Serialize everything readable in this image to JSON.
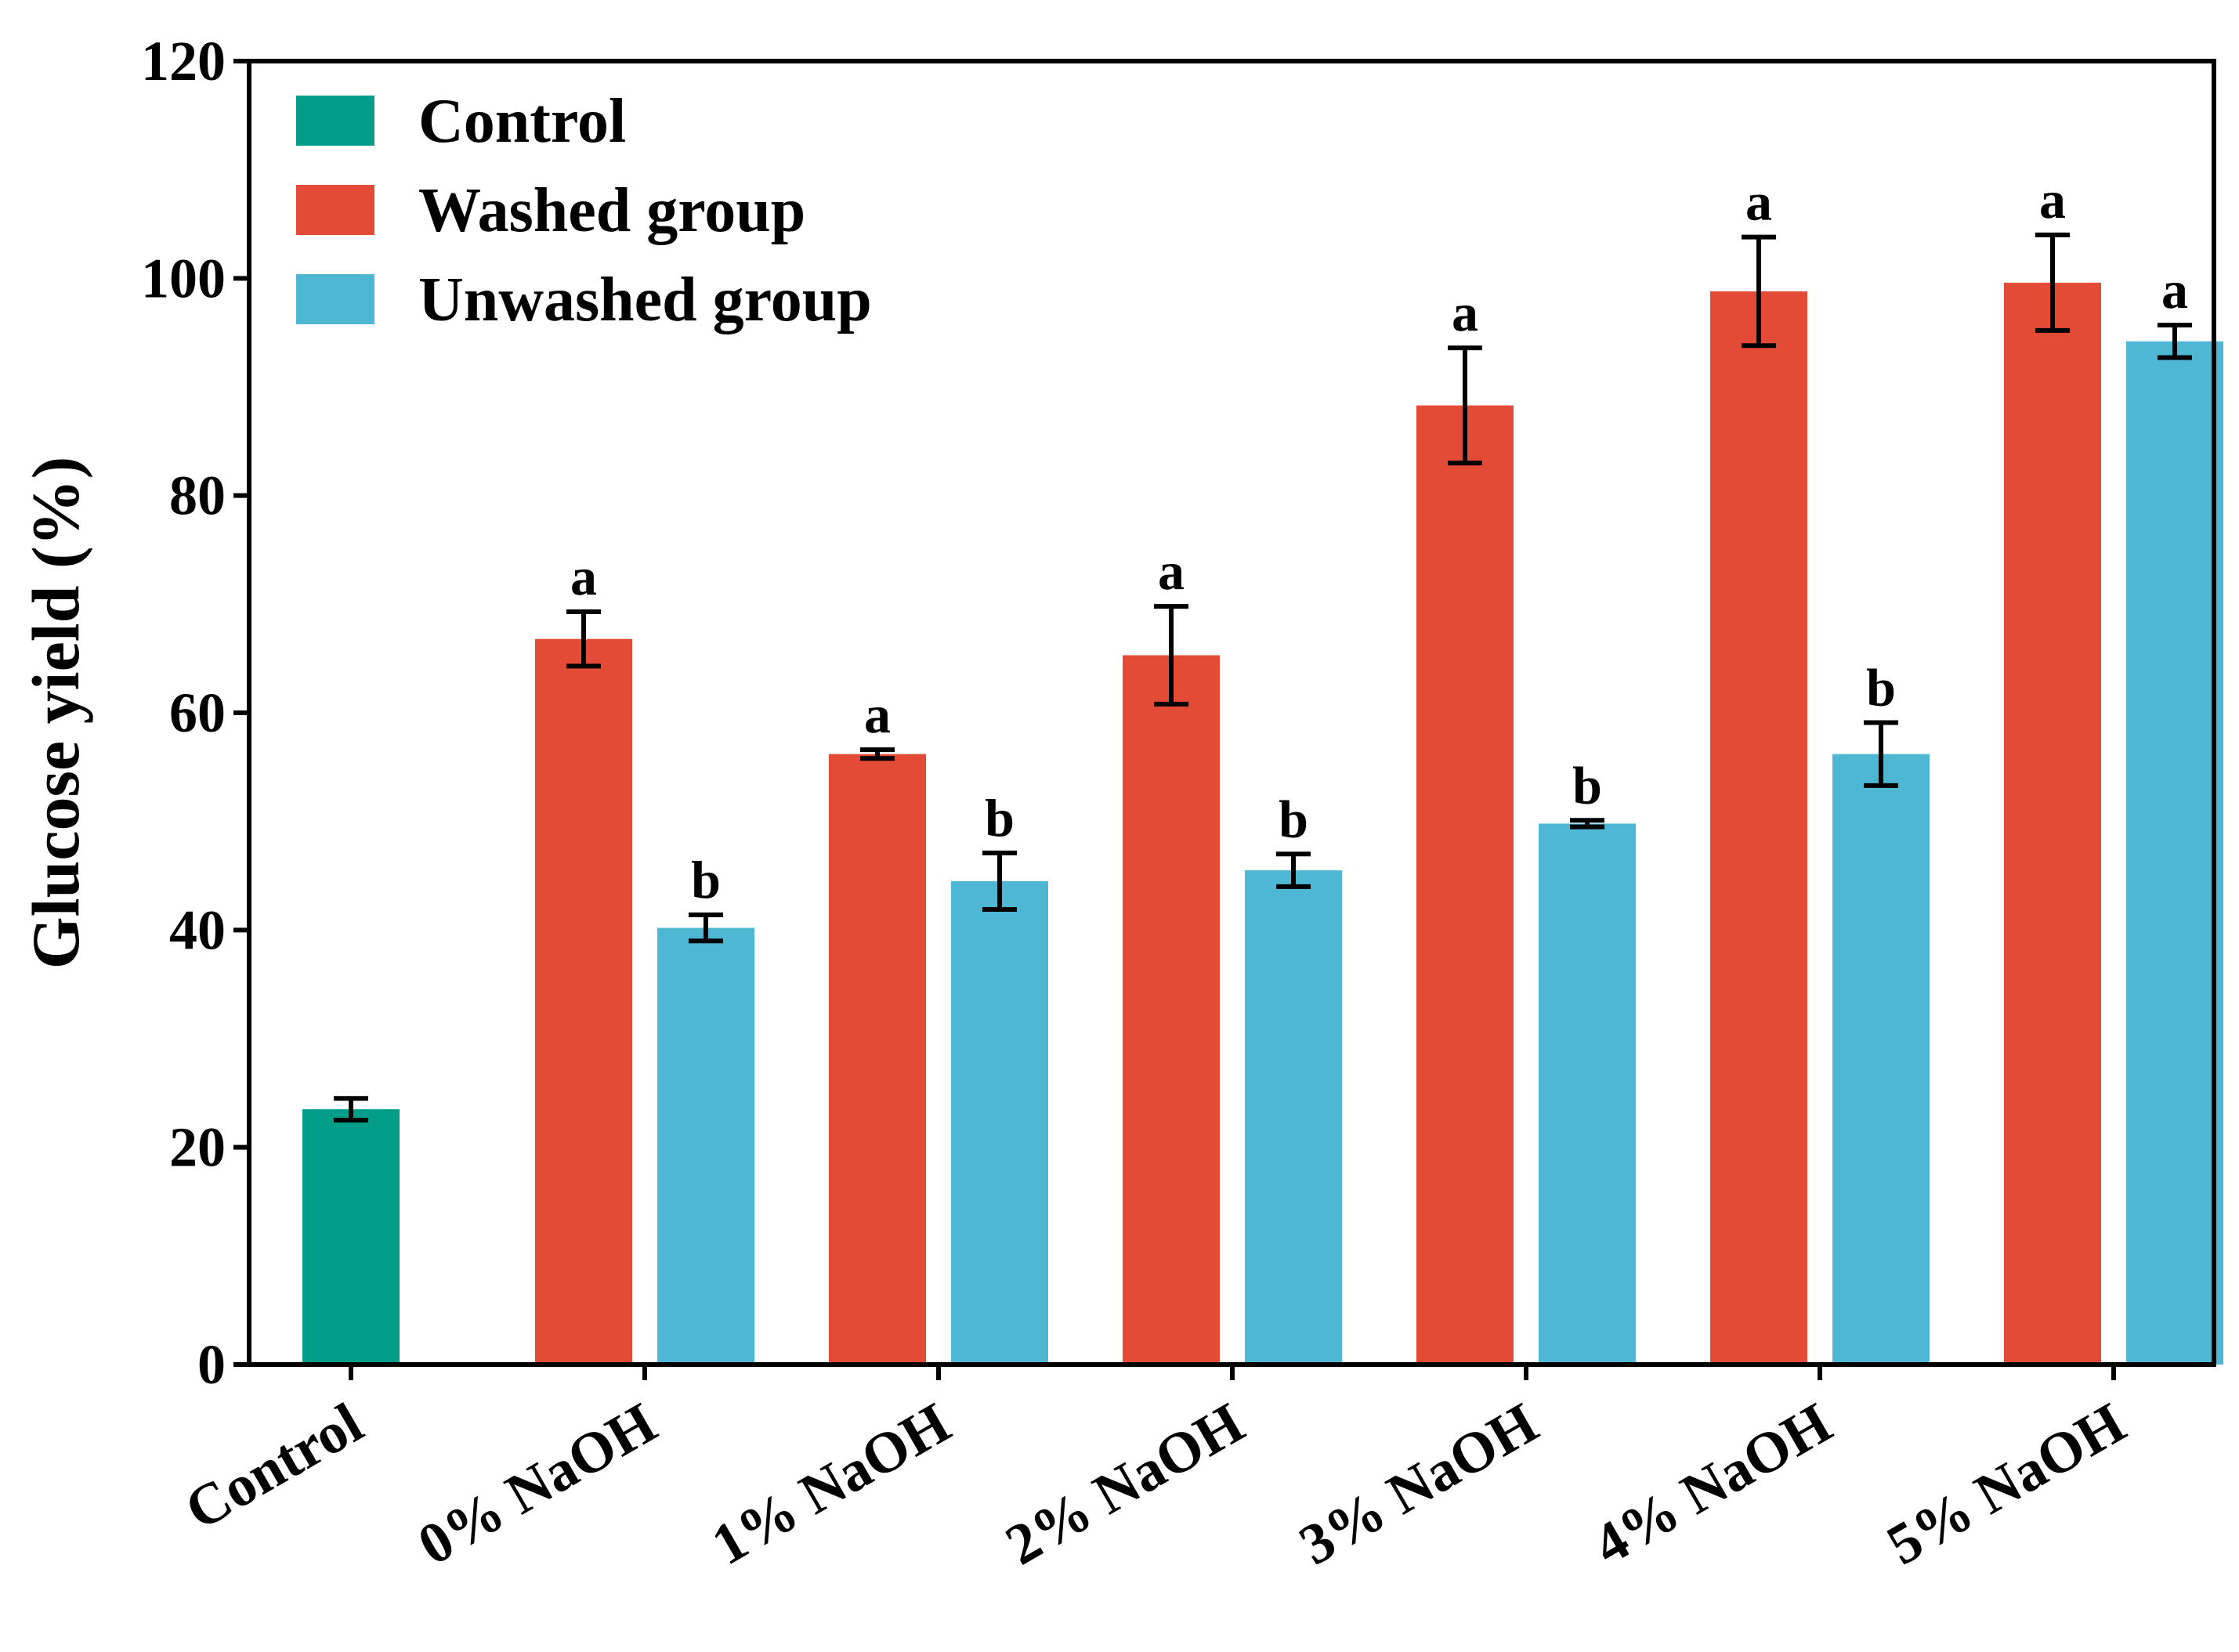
{
  "chart_data": {
    "type": "bar",
    "title": "",
    "xlabel": "",
    "ylabel": "Glucose yield (%)",
    "ylim": [
      0,
      120
    ],
    "yticks": [
      0,
      20,
      40,
      60,
      80,
      100,
      120
    ],
    "grid": false,
    "legend_position": "top-left",
    "categories": [
      "Control",
      "0% NaOH",
      "1% NaOH",
      "2% NaOH",
      "3% NaOH",
      "4% NaOH",
      "5% NaOH"
    ],
    "series": [
      {
        "name": "Control",
        "color": "#009E88",
        "values": [
          23.5,
          null,
          null,
          null,
          null,
          null,
          null
        ],
        "errors": [
          1.0,
          null,
          null,
          null,
          null,
          null,
          null
        ],
        "labels": [
          "",
          null,
          null,
          null,
          null,
          null,
          null
        ]
      },
      {
        "name": "Washed group",
        "color": "#E44B36",
        "values": [
          null,
          66.8,
          56.2,
          65.3,
          88.3,
          98.8,
          99.6
        ],
        "errors": [
          null,
          2.5,
          0.4,
          4.5,
          5.3,
          5.0,
          4.4
        ],
        "labels": [
          null,
          "a",
          "a",
          "a",
          "a",
          "a",
          "a"
        ]
      },
      {
        "name": "Unwashed group",
        "color": "#4EB7D4",
        "values": [
          null,
          40.2,
          44.5,
          45.5,
          49.8,
          56.2,
          94.2
        ],
        "errors": [
          null,
          1.2,
          2.6,
          1.5,
          0.3,
          2.9,
          1.5
        ],
        "labels": [
          null,
          "b",
          "b",
          "b",
          "b",
          "b",
          "a"
        ]
      }
    ]
  }
}
